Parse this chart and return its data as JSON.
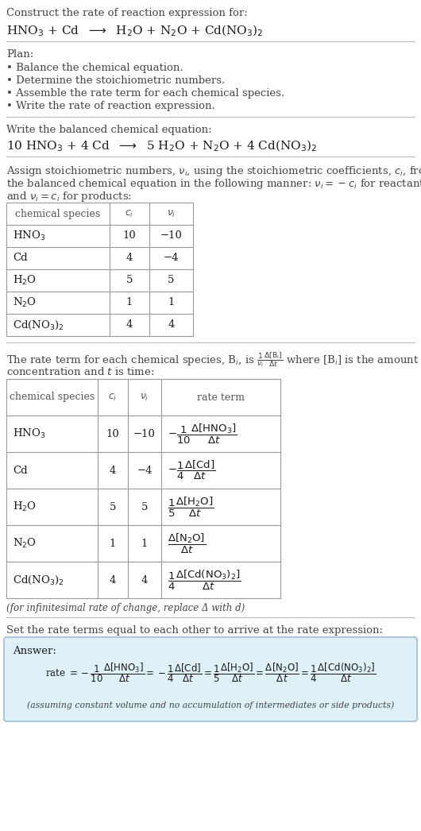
{
  "bg_color": "#ffffff",
  "text_color": "#1a1a1a",
  "gray_text": "#444444",
  "light_gray": "#666666",
  "section1_title": "Construct the rate of reaction expression for:",
  "section1_eq": "HNO$_3$ + Cd  $\\longrightarrow$  H$_2$O + N$_2$O + Cd(NO$_3$)$_2$",
  "plan_title": "Plan:",
  "plan_items": [
    "• Balance the chemical equation.",
    "• Determine the stoichiometric numbers.",
    "• Assemble the rate term for each chemical species.",
    "• Write the rate of reaction expression."
  ],
  "balanced_title": "Write the balanced chemical equation:",
  "balanced_eq": "10 HNO$_3$ + 4 Cd  $\\longrightarrow$  5 H$_2$O + N$_2$O + 4 Cd(NO$_3$)$_2$",
  "assign_line1": "Assign stoichiometric numbers, $\\nu_i$, using the stoichiometric coefficients, $c_i$, from",
  "assign_line2": "the balanced chemical equation in the following manner: $\\nu_i = -c_i$ for reactants",
  "assign_line3": "and $\\nu_i = c_i$ for products:",
  "table1_headers": [
    "chemical species",
    "$c_i$",
    "$\\nu_i$"
  ],
  "table1_rows": [
    [
      "HNO$_3$",
      "10",
      "−10"
    ],
    [
      "Cd",
      "4",
      "−4"
    ],
    [
      "H$_2$O",
      "5",
      "5"
    ],
    [
      "N$_2$O",
      "1",
      "1"
    ],
    [
      "Cd(NO$_3$)$_2$",
      "4",
      "4"
    ]
  ],
  "rate_line1": "The rate term for each chemical species, B$_i$, is $\\frac{1}{\\nu_i}\\frac{\\Delta[\\mathrm{B}_i]}{\\Delta t}$ where [B$_i$] is the amount",
  "rate_line2": "concentration and $t$ is time:",
  "table2_headers": [
    "chemical species",
    "$c_i$",
    "$\\nu_i$",
    "rate term"
  ],
  "table2_rows": [
    [
      "HNO$_3$",
      "10",
      "−10",
      "$-\\dfrac{1}{10}\\dfrac{\\Delta[\\mathrm{HNO_3}]}{\\Delta t}$"
    ],
    [
      "Cd",
      "4",
      "−4",
      "$-\\dfrac{1}{4}\\dfrac{\\Delta[\\mathrm{Cd}]}{\\Delta t}$"
    ],
    [
      "H$_2$O",
      "5",
      "5",
      "$\\dfrac{1}{5}\\dfrac{\\Delta[\\mathrm{H_2O}]}{\\Delta t}$"
    ],
    [
      "N$_2$O",
      "1",
      "1",
      "$\\dfrac{\\Delta[\\mathrm{N_2O}]}{\\Delta t}$"
    ],
    [
      "Cd(NO$_3$)$_2$",
      "4",
      "4",
      "$\\dfrac{1}{4}\\dfrac{\\Delta[\\mathrm{Cd(NO_3)_2}]}{\\Delta t}$"
    ]
  ],
  "infinitesimal_note": "(for infinitesimal rate of change, replace Δ with d)",
  "set_equal_title": "Set the rate terms equal to each other to arrive at the rate expression:",
  "answer_label": "Answer:",
  "answer_box_color": "#dff0f7",
  "answer_box_border": "#9bbfd4",
  "answer_eq": "rate $= -\\dfrac{1}{10}\\dfrac{\\Delta[\\mathrm{HNO_3}]}{\\Delta t} = -\\dfrac{1}{4}\\dfrac{\\Delta[\\mathrm{Cd}]}{\\Delta t} = \\dfrac{1}{5}\\dfrac{\\Delta[\\mathrm{H_2O}]}{\\Delta t} = \\dfrac{\\Delta[\\mathrm{N_2O}]}{\\Delta t} = \\dfrac{1}{4}\\dfrac{\\Delta[\\mathrm{Cd(NO_3)_2}]}{\\Delta t}$",
  "answer_note": "(assuming constant volume and no accumulation of intermediates or side products)"
}
